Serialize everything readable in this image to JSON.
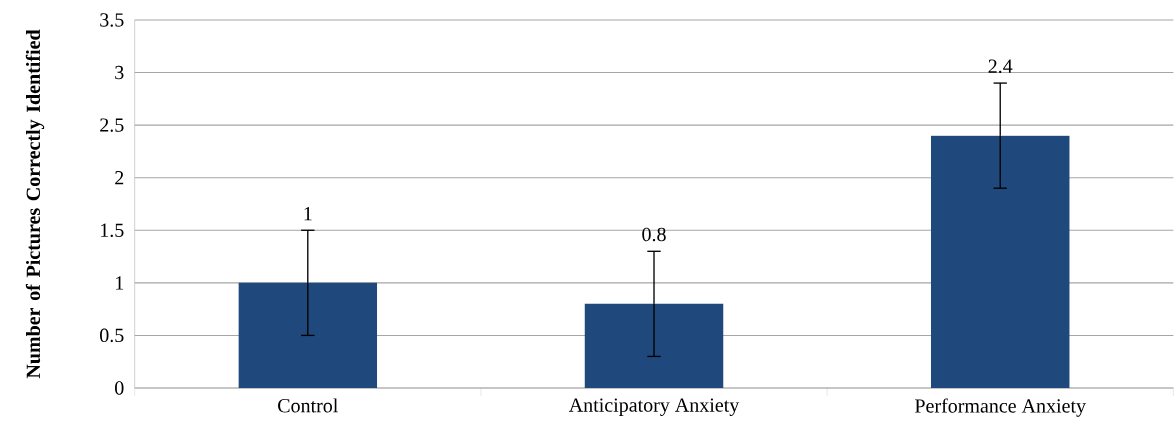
{
  "chart_data": {
    "type": "bar",
    "ylabel": "Number of Pictures Correctly Identified",
    "categories": [
      "Control",
      "Anticipatory Anxiety",
      "Performance Anxiety"
    ],
    "values": [
      1,
      0.8,
      2.4
    ],
    "errors": [
      0.5,
      0.5,
      0.5
    ],
    "color": "#1f497d",
    "ylim": [
      0,
      3.5
    ],
    "yticks": [
      0,
      0.5,
      1,
      1.5,
      2,
      2.5,
      3,
      3.5
    ],
    "value_labels": [
      "1",
      "0.8",
      "2.4"
    ],
    "grid": "y"
  }
}
